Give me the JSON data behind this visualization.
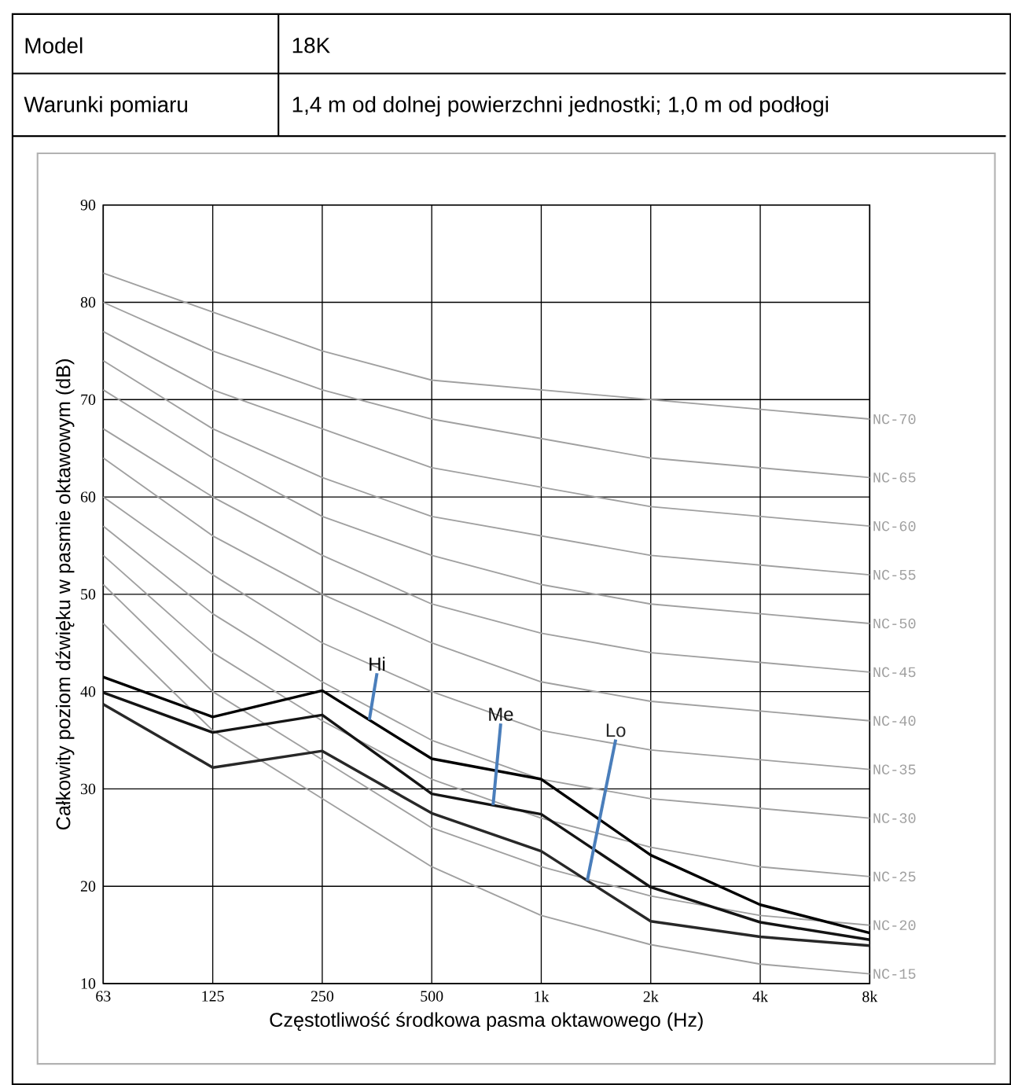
{
  "chart_data": {
    "type": "line",
    "xlabel": "Częstotliwość środkowa pasma oktawowego (Hz)",
    "ylabel": "Całkowity poziom dźwięku w pasmie oktawowym (dB)",
    "annotations": [
      "Model",
      "18K",
      "Warunki pomiaru",
      "1,4 m od dolnej powierzchni jednostki; 1,0 m od podłogi"
    ],
    "categories": [
      "63",
      "125",
      "250",
      "500",
      "1k",
      "2k",
      "4k",
      "8k"
    ],
    "ylim": [
      10,
      90
    ],
    "yticks": [
      10,
      20,
      30,
      40,
      50,
      60,
      70,
      80,
      90
    ],
    "grid": true,
    "series": [
      {
        "name": "NC-15",
        "color": "#a0a0a0",
        "values": [
          47,
          36,
          29,
          22,
          17,
          14,
          12,
          11
        ]
      },
      {
        "name": "NC-20",
        "color": "#a0a0a0",
        "values": [
          51,
          40,
          33,
          26,
          22,
          19,
          17,
          16
        ]
      },
      {
        "name": "NC-25",
        "color": "#a0a0a0",
        "values": [
          54,
          44,
          37,
          31,
          27,
          24,
          22,
          21
        ]
      },
      {
        "name": "NC-30",
        "color": "#a0a0a0",
        "values": [
          57,
          48,
          41,
          35,
          31,
          29,
          28,
          27
        ]
      },
      {
        "name": "NC-35",
        "color": "#a0a0a0",
        "values": [
          60,
          52,
          45,
          40,
          36,
          34,
          33,
          32
        ]
      },
      {
        "name": "NC-40",
        "color": "#a0a0a0",
        "values": [
          64,
          56,
          50,
          45,
          41,
          39,
          38,
          37
        ]
      },
      {
        "name": "NC-45",
        "color": "#a0a0a0",
        "values": [
          67,
          60,
          54,
          49,
          46,
          44,
          43,
          42
        ]
      },
      {
        "name": "NC-50",
        "color": "#a0a0a0",
        "values": [
          71,
          64,
          58,
          54,
          51,
          49,
          48,
          47
        ]
      },
      {
        "name": "NC-55",
        "color": "#a0a0a0",
        "values": [
          74,
          67,
          62,
          58,
          56,
          54,
          53,
          52
        ]
      },
      {
        "name": "NC-60",
        "color": "#a0a0a0",
        "values": [
          77,
          71,
          67,
          63,
          61,
          59,
          58,
          57
        ]
      },
      {
        "name": "NC-65",
        "color": "#a0a0a0",
        "values": [
          80,
          75,
          71,
          68,
          66,
          64,
          63,
          62
        ]
      },
      {
        "name": "NC-70",
        "color": "#a0a0a0",
        "values": [
          83,
          79,
          75,
          72,
          71,
          70,
          69,
          68
        ]
      },
      {
        "name": "Hi",
        "color": "#000000",
        "values": [
          41.5,
          37.4,
          40.1,
          33.1,
          31.0,
          23.2,
          18.1,
          15.2
        ]
      },
      {
        "name": "Me",
        "color": "#141414",
        "values": [
          39.9,
          35.8,
          37.6,
          29.5,
          27.4,
          19.9,
          16.3,
          14.5
        ]
      },
      {
        "name": "Lo",
        "color": "#282828",
        "values": [
          38.7,
          32.2,
          33.9,
          27.5,
          23.6,
          16.4,
          14.8,
          13.9
        ]
      }
    ]
  }
}
